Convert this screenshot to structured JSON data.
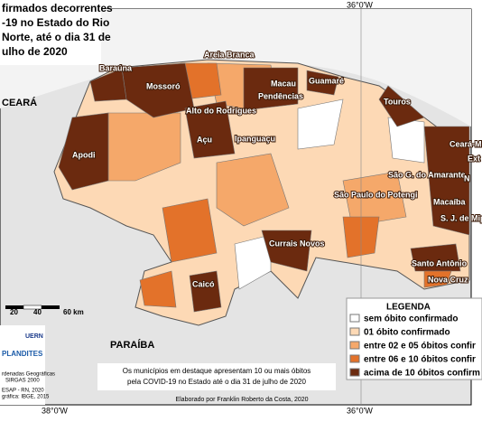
{
  "title_lines": [
    "firmados decorrentes",
    "-19 no Estado do Rio",
    "Norte, até o dia 31 de",
    "ulho de 2020"
  ],
  "coordinates": {
    "top": "36°0'W",
    "bottom_left": "38°0'W",
    "bottom_right": "36°0'W"
  },
  "neighbors": {
    "west": "CEARÁ",
    "south": "PARAÍBA"
  },
  "places": [
    "Baraúna",
    "Mossoró",
    "Areia Branca",
    "Macau",
    "Pendências",
    "Guamaré",
    "Touros",
    "Alto do Rodrigues",
    "Açu",
    "Ipanguaçu",
    "Apodi",
    "Ceará-Mi",
    "Ext",
    "São G. do Amarante",
    "São Paulo do Potengi",
    "Macaíba",
    "N",
    "S. J. de Mip",
    "Currais Novos",
    "Santo Antônio",
    "Nova Cruz",
    "Caicó"
  ],
  "scale": [
    "20",
    "40",
    "60 km"
  ],
  "logos": [
    "UERN",
    "PLANDITES"
  ],
  "metadata": [
    "rdenadas Geográficas",
    "SIRGAS 2000",
    "ESAP - RN, 2020",
    "gráfica: IBGE, 2015"
  ],
  "legend": {
    "title": "LEGENDA",
    "items": [
      "sem óbito confirmado",
      "01 óbito confirmado",
      "entre 02 e 05 óbitos confir",
      "entre 06 e 10 óbitos confir",
      "acima de 10 óbitos confirm"
    ]
  },
  "note": [
    "Os municípios em destaque apresentam 10 ou mais óbitos",
    "pela COVID-19 no Estado até o dia 31 de julho de 2020"
  ],
  "credit": "Elaborado por Franklin Roberto da Costa, 2020"
}
